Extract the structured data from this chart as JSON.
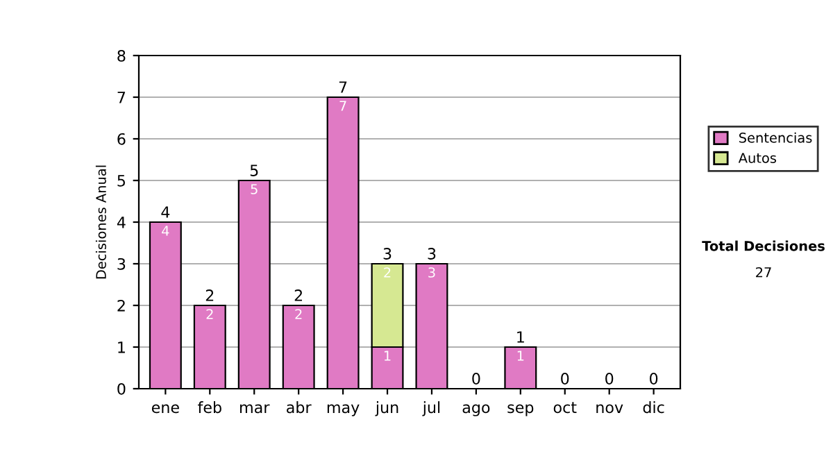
{
  "chart_data": {
    "type": "bar",
    "stacked": true,
    "ylabel": "Decisiones Anual",
    "categories": [
      "ene",
      "feb",
      "mar",
      "abr",
      "may",
      "jun",
      "jul",
      "ago",
      "sep",
      "oct",
      "nov",
      "dic"
    ],
    "series": [
      {
        "name": "Sentencias",
        "color": "#e07ac4",
        "values": [
          4,
          2,
          5,
          2,
          7,
          1,
          3,
          0,
          1,
          0,
          0,
          0
        ],
        "value_labels": [
          "4",
          "2",
          "5",
          "2",
          "7",
          "1",
          "3",
          null,
          "1",
          null,
          null,
          null
        ]
      },
      {
        "name": "Autos",
        "color": "#d6e892",
        "values": [
          0,
          0,
          0,
          0,
          0,
          2,
          0,
          0,
          0,
          0,
          0,
          0
        ],
        "value_labels": [
          null,
          null,
          null,
          null,
          null,
          "2",
          null,
          null,
          null,
          null,
          null,
          null
        ]
      }
    ],
    "totals": [
      "4",
      "2",
      "5",
      "2",
      "7",
      "3",
      "3",
      "0",
      "1",
      "0",
      "0",
      "0"
    ],
    "ylim": [
      0,
      8
    ],
    "yticks": [
      0,
      1,
      2,
      3,
      4,
      5,
      6,
      7,
      8
    ],
    "grid": "y",
    "legend": "right",
    "annotations": [
      "Total Decisiones",
      "27"
    ]
  }
}
